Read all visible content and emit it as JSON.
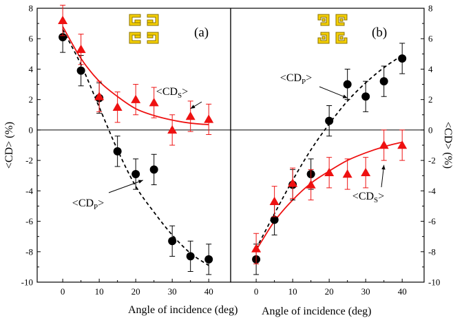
{
  "chart_data": [
    {
      "type": "scatter",
      "panel_label": "(a)",
      "xlabel": "Angle of incidence (deg)",
      "ylabel": "<CD> (%)",
      "xlim": [
        -7,
        46
      ],
      "ylim": [
        -10,
        8
      ],
      "x_ticks": [
        "0",
        "10",
        "20",
        "30",
        "40"
      ],
      "y_ticks": [
        "-10",
        "-8",
        "-6",
        "-4",
        "-2",
        "0",
        "2",
        "4",
        "6",
        "8"
      ],
      "colors": {
        "CDP": "#000000",
        "CDS": "#ee1111"
      },
      "series": [
        {
          "marker": "circle",
          "x": [
            0,
            5,
            10,
            15,
            20,
            25,
            30,
            35,
            40
          ],
          "y": [
            6.1,
            3.9,
            2.1,
            -1.4,
            -2.9,
            -2.6,
            -7.3,
            -8.3,
            -8.5
          ],
          "error": [
            1.0,
            1.0,
            1.0,
            1.0,
            1.0,
            1.0,
            1.0,
            1.0,
            1.0
          ],
          "fit": "dashed",
          "fit_x": [
            0,
            5,
            10,
            15,
            20,
            25,
            30,
            35,
            40
          ],
          "fit_y": [
            6.6,
            4.3,
            1.5,
            -1.3,
            -3.7,
            -5.4,
            -6.9,
            -8.1,
            -8.9
          ]
        },
        {
          "marker": "triangle",
          "x": [
            0,
            5,
            10,
            15,
            20,
            25,
            30,
            35,
            40
          ],
          "y": [
            7.2,
            5.3,
            2.2,
            1.5,
            2.0,
            1.8,
            0.0,
            0.9,
            0.7
          ],
          "error": [
            1.0,
            1.0,
            1.0,
            1.0,
            1.0,
            1.0,
            1.0,
            1.0,
            1.0
          ],
          "fit": "solid",
          "fit_x": [
            0,
            5,
            10,
            15,
            20,
            25,
            30,
            35,
            40
          ],
          "fit_y": [
            6.8,
            4.7,
            3.2,
            2.2,
            1.4,
            0.95,
            0.65,
            0.45,
            0.35
          ]
        }
      ],
      "annotations": [
        {
          "main": "<CD",
          "sub": "S",
          "close": ">",
          "arrow_to": [
            35,
            1.4
          ]
        },
        {
          "main": "<CD",
          "sub": "P",
          "close": ">",
          "arrow_to": [
            22,
            -3.3
          ]
        }
      ]
    },
    {
      "type": "scatter",
      "panel_label": "(b)",
      "xlabel": "Angle of incidence (deg)",
      "ylabel": "<CD> (%)",
      "xlim": [
        -7,
        46
      ],
      "ylim": [
        -10,
        8
      ],
      "x_ticks": [
        "0",
        "10",
        "20",
        "30",
        "40"
      ],
      "y_ticks": [
        "-10",
        "-8",
        "-6",
        "-4",
        "-2",
        "0",
        "2",
        "4",
        "6",
        "8"
      ],
      "colors": {
        "CDP": "#000000",
        "CDS": "#ee1111"
      },
      "series": [
        {
          "marker": "circle",
          "x": [
            0,
            5,
            10,
            15,
            20,
            25,
            30,
            35,
            40
          ],
          "y": [
            -8.5,
            -5.9,
            -3.6,
            -2.9,
            0.6,
            3.0,
            2.2,
            3.2,
            4.7
          ],
          "error": [
            1.0,
            1.0,
            1.0,
            1.0,
            1.0,
            1.0,
            1.0,
            1.0,
            1.0
          ],
          "fit": "dashed",
          "fit_x": [
            0,
            5,
            10,
            15,
            20,
            25,
            30,
            35,
            40
          ],
          "fit_y": [
            -7.8,
            -5.5,
            -3.3,
            -1.3,
            0.4,
            1.9,
            3.1,
            4.1,
            4.9
          ]
        },
        {
          "marker": "triangle",
          "x": [
            0,
            5,
            10,
            15,
            20,
            25,
            30,
            35,
            40
          ],
          "y": [
            -7.8,
            -4.7,
            -3.5,
            -3.6,
            -2.8,
            -2.9,
            -2.8,
            -1.0,
            -1.0
          ],
          "error": [
            1.0,
            1.0,
            1.0,
            1.0,
            1.0,
            1.0,
            1.0,
            1.0,
            1.0
          ],
          "fit": "solid",
          "fit_x": [
            0,
            5,
            10,
            15,
            20,
            25,
            30,
            35,
            40
          ],
          "fit_y": [
            -7.9,
            -6.0,
            -4.6,
            -3.5,
            -2.7,
            -2.0,
            -1.5,
            -1.1,
            -0.8
          ]
        }
      ],
      "annotations": [
        {
          "main": "<CD",
          "sub": "P",
          "close": ">",
          "arrow_to": [
            25,
            2.1
          ]
        },
        {
          "main": "<CD",
          "sub": "S",
          "close": ">",
          "arrow_to": [
            35,
            -2.3
          ]
        }
      ]
    }
  ],
  "icon_colors": {
    "fill": "#f5d000",
    "stroke": "#8a7200"
  },
  "icons": [
    "gammadion-array-a-icon",
    "gammadion-array-b-icon"
  ]
}
